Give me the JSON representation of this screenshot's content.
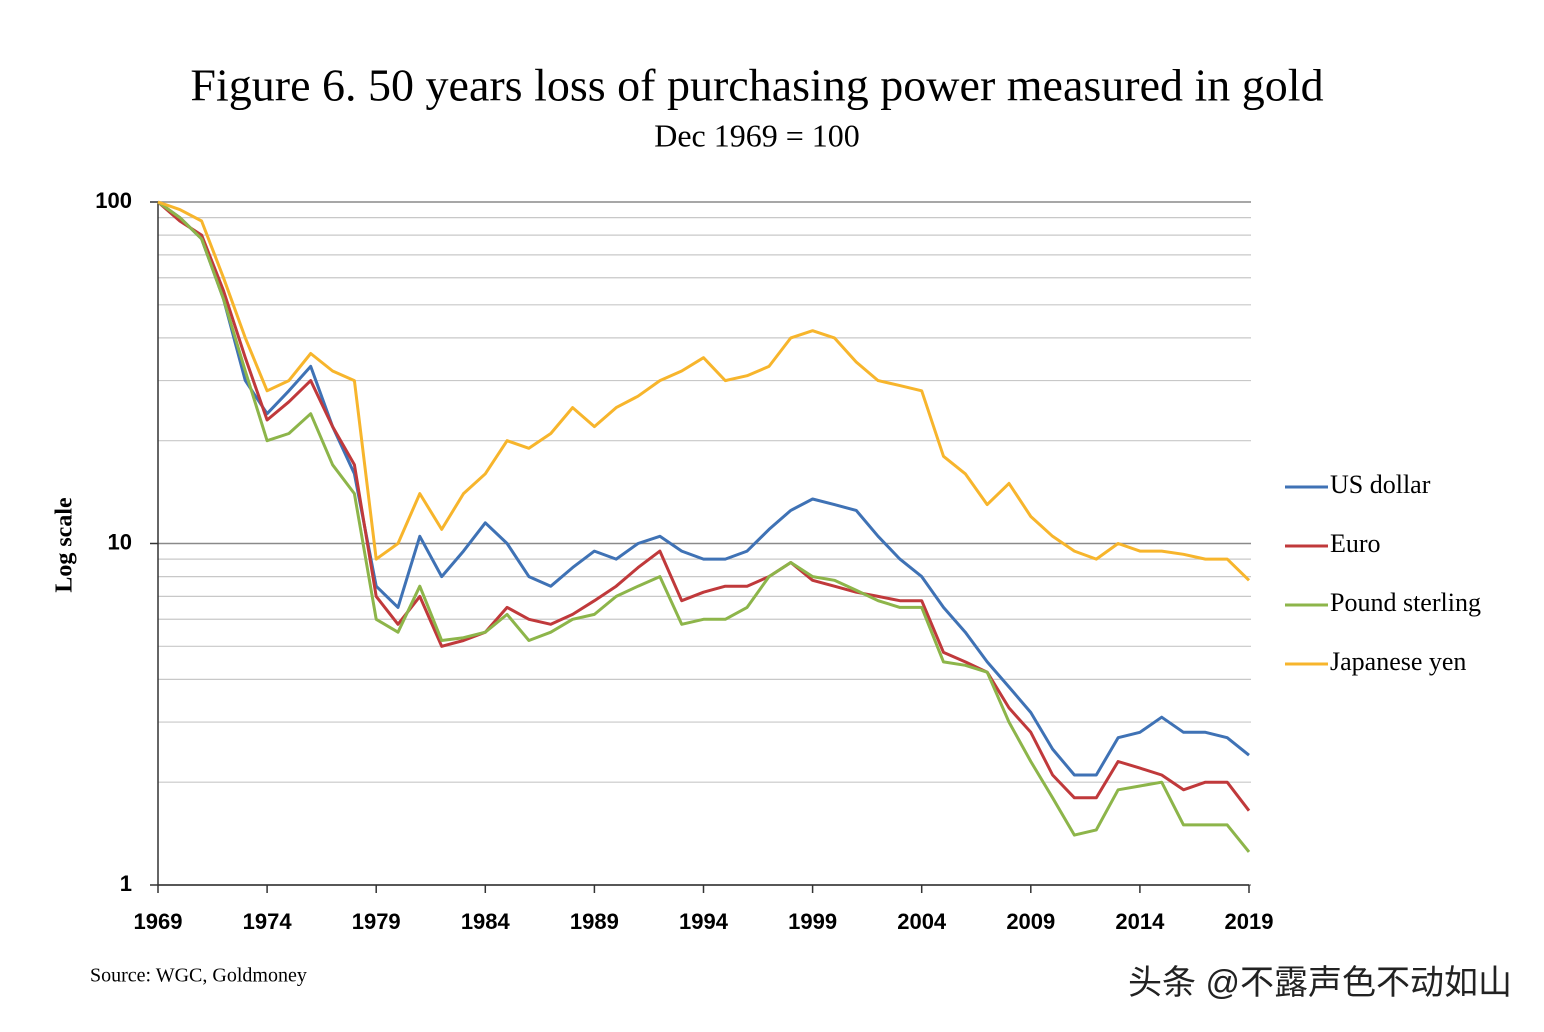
{
  "chart_data": {
    "type": "line",
    "title": "Figure 6. 50 years loss of purchasing power measured in gold",
    "subtitle": "Dec 1969 = 100",
    "y_label": "Log scale",
    "source": "Source: WGC, Goldmoney",
    "watermark": "头条 @不露声色不动如山",
    "log_y": true,
    "grid": true,
    "legend": "right",
    "x": [
      1969,
      1970,
      1971,
      1972,
      1973,
      1974,
      1975,
      1976,
      1977,
      1978,
      1979,
      1980,
      1981,
      1982,
      1983,
      1984,
      1985,
      1986,
      1987,
      1988,
      1989,
      1990,
      1991,
      1992,
      1993,
      1994,
      1995,
      1996,
      1997,
      1998,
      1999,
      2000,
      2001,
      2002,
      2003,
      2004,
      2005,
      2006,
      2007,
      2008,
      2009,
      2010,
      2011,
      2012,
      2013,
      2014,
      2015,
      2016,
      2017,
      2018,
      2019
    ],
    "xlim": [
      1969,
      2019
    ],
    "xticks": [
      1969,
      1974,
      1979,
      1984,
      1989,
      1994,
      1999,
      2004,
      2009,
      2014,
      2019
    ],
    "ylim": [
      1,
      100
    ],
    "yticks": [
      1,
      10,
      100
    ],
    "minor_gridlines": [
      2,
      3,
      4,
      5,
      6,
      7,
      8,
      9,
      20,
      30,
      40,
      50,
      60,
      70,
      80,
      90
    ],
    "series": [
      {
        "name": "US dollar",
        "color": "#3f72b5",
        "values": [
          100,
          90,
          78,
          52,
          30,
          24,
          28,
          33,
          22,
          16,
          7.5,
          6.5,
          10.5,
          8,
          9.5,
          11.5,
          10,
          8,
          7.5,
          8.5,
          9.5,
          9,
          10,
          10.5,
          9.5,
          9,
          9,
          9.5,
          11,
          12.5,
          13.5,
          13,
          12.5,
          10.5,
          9,
          8,
          6.5,
          5.5,
          4.5,
          3.8,
          3.2,
          2.5,
          2.1,
          2.1,
          2.7,
          2.8,
          3.1,
          2.8,
          2.8,
          2.7,
          2.4
        ]
      },
      {
        "name": "Euro",
        "color": "#c0393b",
        "values": [
          100,
          88,
          80,
          55,
          35,
          23,
          26,
          30,
          22,
          17,
          7,
          5.8,
          7,
          5,
          5.2,
          5.5,
          6.5,
          6,
          5.8,
          6.2,
          6.8,
          7.5,
          8.5,
          9.5,
          6.8,
          7.2,
          7.5,
          7.5,
          8,
          8.8,
          7.8,
          7.5,
          7.2,
          7,
          6.8,
          6.8,
          4.8,
          4.5,
          4.2,
          3.3,
          2.8,
          2.1,
          1.8,
          1.8,
          2.3,
          2.2,
          2.1,
          1.9,
          2,
          2,
          1.65
        ]
      },
      {
        "name": "Pound sterling",
        "color": "#8db54a",
        "values": [
          100,
          90,
          78,
          52,
          32,
          20,
          21,
          24,
          17,
          14,
          6,
          5.5,
          7.5,
          5.2,
          5.3,
          5.5,
          6.2,
          5.2,
          5.5,
          6,
          6.2,
          7,
          7.5,
          8,
          5.8,
          6,
          6,
          6.5,
          8,
          8.8,
          8,
          7.8,
          7.3,
          6.8,
          6.5,
          6.5,
          4.5,
          4.4,
          4.2,
          3,
          2.3,
          1.8,
          1.4,
          1.45,
          1.9,
          1.95,
          2,
          1.5,
          1.5,
          1.5,
          1.25
        ]
      },
      {
        "name": "Japanese yen",
        "color": "#f7b52c",
        "values": [
          100,
          95,
          88,
          60,
          40,
          28,
          30,
          36,
          32,
          30,
          9,
          10,
          14,
          11,
          14,
          16,
          20,
          19,
          21,
          25,
          22,
          25,
          27,
          30,
          32,
          35,
          30,
          31,
          33,
          40,
          42,
          40,
          34,
          30,
          29,
          28,
          18,
          16,
          13,
          15,
          12,
          10.5,
          9.5,
          9,
          10,
          9.5,
          9.5,
          9.3,
          9,
          9,
          7.8
        ]
      }
    ]
  }
}
